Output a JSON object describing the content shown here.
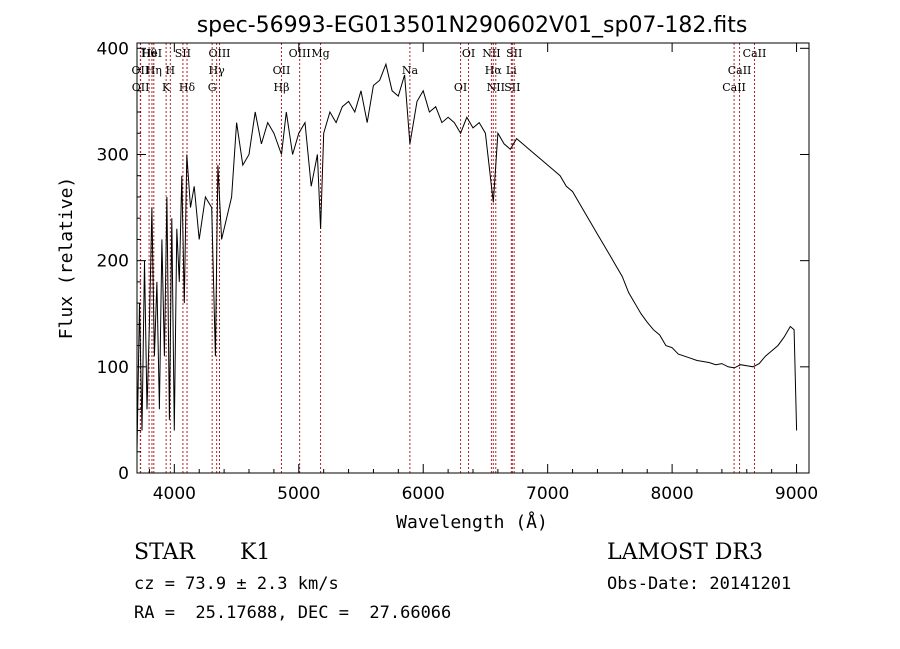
{
  "colors": {
    "spectrum": "#000000",
    "lines": "#b22222",
    "text": "#000000",
    "background": "#ffffff"
  },
  "chart_data": {
    "type": "line",
    "title": "spec-56993-EG013501N290602V01_sp07-182.fits",
    "xlabel": "Wavelength (Å)",
    "ylabel": "Flux (relative)",
    "xlim": [
      3700,
      9100
    ],
    "ylim": [
      0,
      405
    ],
    "x_ticks": [
      4000,
      5000,
      6000,
      7000,
      8000,
      9000
    ],
    "y_ticks": [
      0,
      100,
      200,
      300,
      400
    ],
    "series": [
      {
        "name": "spectrum",
        "x": [
          3700,
          3720,
          3740,
          3760,
          3780,
          3800,
          3820,
          3840,
          3860,
          3880,
          3900,
          3920,
          3940,
          3960,
          3980,
          4000,
          4020,
          4040,
          4060,
          4080,
          4100,
          4130,
          4160,
          4200,
          4250,
          4300,
          4330,
          4350,
          4380,
          4420,
          4460,
          4500,
          4550,
          4600,
          4650,
          4700,
          4750,
          4800,
          4861,
          4900,
          4950,
          5000,
          5050,
          5100,
          5150,
          5175,
          5200,
          5250,
          5300,
          5350,
          5400,
          5450,
          5500,
          5550,
          5600,
          5650,
          5700,
          5750,
          5800,
          5850,
          5893,
          5950,
          6000,
          6050,
          6100,
          6150,
          6200,
          6250,
          6300,
          6350,
          6400,
          6450,
          6500,
          6563,
          6600,
          6650,
          6700,
          6750,
          6800,
          6850,
          6900,
          6950,
          7000,
          7050,
          7100,
          7150,
          7200,
          7250,
          7300,
          7350,
          7400,
          7450,
          7500,
          7550,
          7600,
          7650,
          7700,
          7750,
          7800,
          7850,
          7900,
          7950,
          8000,
          8050,
          8100,
          8150,
          8200,
          8250,
          8300,
          8350,
          8400,
          8450,
          8500,
          8550,
          8600,
          8650,
          8700,
          8750,
          8800,
          8850,
          8900,
          8950,
          8980,
          9000
        ],
        "y": [
          20,
          160,
          40,
          200,
          60,
          140,
          250,
          110,
          180,
          60,
          220,
          110,
          260,
          50,
          240,
          40,
          230,
          180,
          280,
          160,
          300,
          250,
          270,
          220,
          260,
          250,
          110,
          290,
          220,
          240,
          260,
          330,
          290,
          300,
          340,
          310,
          330,
          320,
          300,
          340,
          300,
          320,
          330,
          270,
          300,
          230,
          320,
          340,
          330,
          345,
          350,
          340,
          360,
          330,
          365,
          370,
          385,
          360,
          355,
          375,
          310,
          350,
          360,
          340,
          345,
          330,
          335,
          330,
          320,
          335,
          325,
          330,
          320,
          255,
          320,
          310,
          305,
          315,
          310,
          305,
          300,
          295,
          290,
          285,
          280,
          270,
          265,
          255,
          245,
          235,
          225,
          215,
          205,
          195,
          185,
          170,
          160,
          150,
          142,
          135,
          130,
          120,
          118,
          112,
          110,
          108,
          106,
          105,
          104,
          102,
          103,
          100,
          99,
          102,
          101,
          100,
          103,
          110,
          115,
          120,
          128,
          138,
          135,
          40
        ]
      }
    ],
    "emission_lines": [
      {
        "label": "Hθ",
        "wavelength": 3797
      },
      {
        "label": "OII",
        "wavelength": 3727
      },
      {
        "label": "OII",
        "wavelength": 3729
      },
      {
        "label": "HeI",
        "wavelength": 3820
      },
      {
        "label": "Hη",
        "wavelength": 3835
      },
      {
        "label": "K",
        "wavelength": 3934
      },
      {
        "label": "SII",
        "wavelength": 4069
      },
      {
        "label": "H",
        "wavelength": 3968
      },
      {
        "label": "Hδ",
        "wavelength": 4102
      },
      {
        "label": "OIII",
        "wavelength": 4363
      },
      {
        "label": "Hγ",
        "wavelength": 4340
      },
      {
        "label": "G",
        "wavelength": 4304
      },
      {
        "label": "OIII",
        "wavelength": 5007
      },
      {
        "label": "OII",
        "wavelength": 4861
      },
      {
        "label": "Hβ",
        "wavelength": 4861
      },
      {
        "label": "Mg",
        "wavelength": 5175
      },
      {
        "label": "Na",
        "wavelength": 5893
      },
      {
        "label": "OI",
        "wavelength": 6300
      },
      {
        "label": "OI",
        "wavelength": 6364
      },
      {
        "label": "Hα",
        "wavelength": 6563
      },
      {
        "label": "SII",
        "wavelength": 6716
      },
      {
        "label": "NII",
        "wavelength": 6548
      },
      {
        "label": "Li",
        "wavelength": 6708
      },
      {
        "label": "NII",
        "wavelength": 6583
      },
      {
        "label": "SII",
        "wavelength": 6731
      },
      {
        "label": "CaII",
        "wavelength": 8542
      },
      {
        "label": "CaII",
        "wavelength": 8498
      },
      {
        "label": "CaII",
        "wavelength": 8662
      }
    ]
  },
  "info": {
    "class_label": "STAR",
    "subclass": "K1",
    "survey": "LAMOST DR3",
    "cz": "cz = 73.9 ± 2.3 km/s",
    "obs_date": "Obs-Date: 20141201",
    "coords": "RA =  25.17688, DEC =  27.66066"
  }
}
